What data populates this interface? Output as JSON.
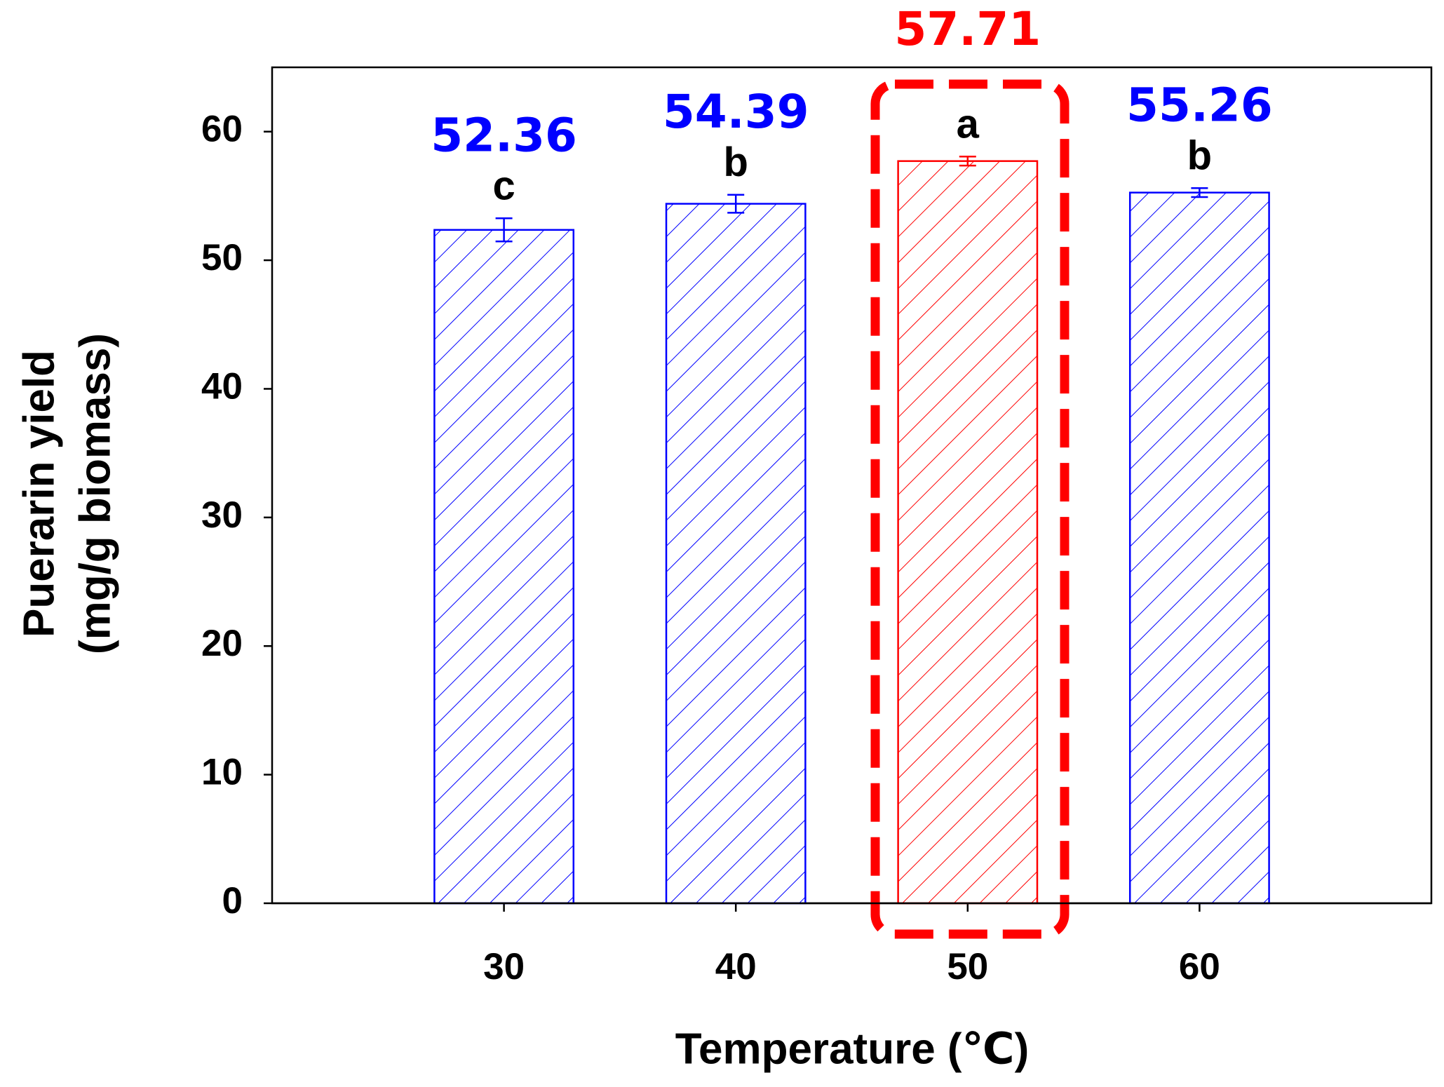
{
  "chart_data": {
    "type": "bar",
    "x_label": "Temperature (℃)",
    "y_label": [
      "Puerarin yield",
      "(mg/g biomass)"
    ],
    "x": [
      30,
      40,
      50,
      60
    ],
    "xlim": [
      20,
      70
    ],
    "xticks": [
      30,
      40,
      50,
      60
    ],
    "ylim": [
      0,
      65
    ],
    "yticks": [
      0,
      10,
      20,
      30,
      40,
      50,
      60
    ],
    "bar_width": 6,
    "series": [
      {
        "values": [
          52.36,
          54.39,
          57.71,
          55.26
        ],
        "errors": [
          0.9,
          0.7,
          0.35,
          0.35
        ],
        "colors": [
          "#0000ff",
          "#0000ff",
          "#ff0000",
          "#0000ff"
        ],
        "annotations": [
          "c",
          "b",
          "a",
          "b"
        ]
      }
    ]
  }
}
